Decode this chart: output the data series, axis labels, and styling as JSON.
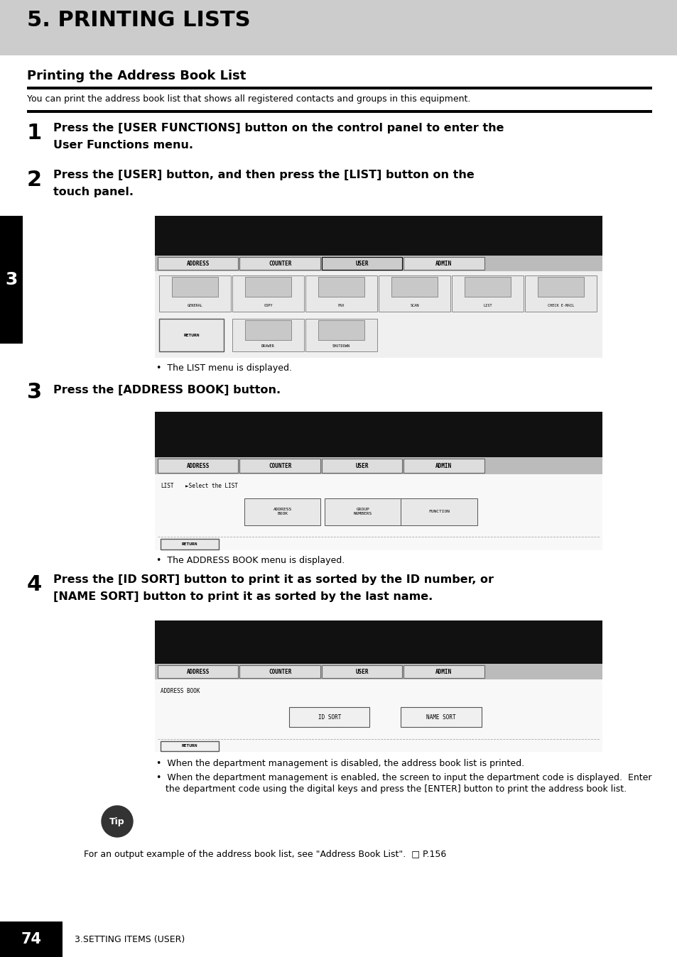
{
  "title": "5. PRINTING LISTS",
  "section_title": "Printing the Address Book List",
  "intro_text": "You can print the address book list that shows all registered contacts and groups in this equipment.",
  "step1_num": "1",
  "step1_line1": "Press the [USER FUNCTIONS] button on the control panel to enter the",
  "step1_line2": "User Functions menu.",
  "step2_num": "2",
  "step2_line1": "Press the [USER] button, and then press the [LIST] button on the",
  "step2_line2": "touch panel.",
  "step2_bullet": "The LIST menu is displayed.",
  "step3_num": "3",
  "step3_line1": "Press the [ADDRESS BOOK] button.",
  "step3_bullet": "The ADDRESS BOOK menu is displayed.",
  "step4_num": "4",
  "step4_line1": "Press the [ID SORT] button to print it as sorted by the ID number, or",
  "step4_line2": "[NAME SORT] button to print it as sorted by the last name.",
  "step4_bullet1": "When the department management is disabled, the address book list is printed.",
  "step4_bullet2a": "When the department management is enabled, the screen to input the department code is displayed.  Enter",
  "step4_bullet2b": "the department code using the digital keys and press the [ENTER] button to print the address book list.",
  "tip_text": "For an output example of the address book list, see \"Address Book List\".  □ P.156",
  "footer_page": "74",
  "footer_text": "3.SETTING ITEMS (USER)",
  "sidebar_num": "3",
  "header_bg": "#cccccc",
  "sidebar_bg": "#000000",
  "screen_bg": "#000000",
  "screen_content_bg": "#f0f0f0",
  "tab_bg": "#888888",
  "tab_active_bg": "#cccccc",
  "btn_bg": "#e0e0e0",
  "tip_circle_bg": "#333333"
}
